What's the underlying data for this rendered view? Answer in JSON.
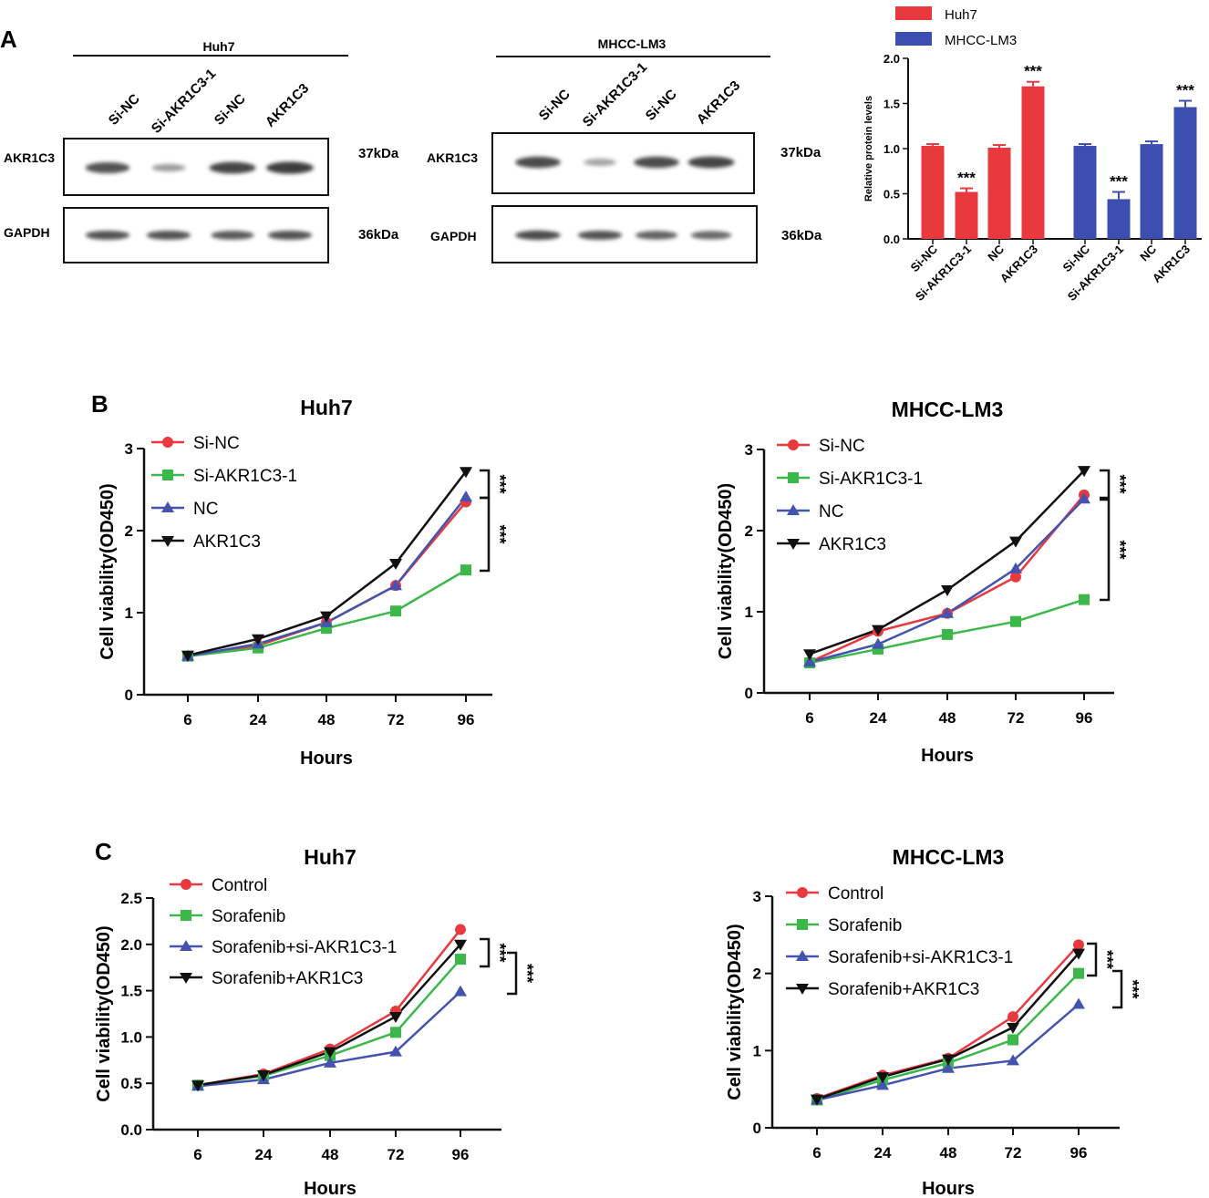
{
  "panel_labels": {
    "a": "A",
    "b": "B",
    "c": "C"
  },
  "colors": {
    "red": "#e8393f",
    "green": "#3cb84a",
    "blue": "#4452b0",
    "black": "#111111",
    "bar_red": "#e8393f",
    "bar_blue": "#3c4fb0"
  },
  "blots": [
    {
      "cell_line": "Huh7",
      "lanes": [
        "Si-NC",
        "Si-AKR1C3-1",
        "Si-NC",
        "AKR1C3"
      ],
      "proteins": [
        {
          "name": "AKR1C3",
          "kda": "37kDa",
          "intensity": [
            0.85,
            0.35,
            0.95,
            1.0
          ]
        },
        {
          "name": "GAPDH",
          "kda": "36kDa",
          "intensity": [
            0.85,
            0.85,
            0.8,
            0.85
          ]
        }
      ]
    },
    {
      "cell_line": "MHCC-LM3",
      "lanes": [
        "Si-NC",
        "Si-AKR1C3-1",
        "Si-NC",
        "AKR1C3"
      ],
      "proteins": [
        {
          "name": "AKR1C3",
          "kda": "37kDa",
          "intensity": [
            0.9,
            0.3,
            0.9,
            0.95
          ]
        },
        {
          "name": "GAPDH",
          "kda": "36kDa",
          "intensity": [
            0.9,
            0.85,
            0.75,
            0.7
          ]
        }
      ]
    }
  ],
  "chart_data": [
    {
      "id": "bar",
      "type": "bar",
      "ylabel": "Relative protein levels",
      "ylim": [
        0,
        2.0
      ],
      "yticks": [
        "0.0",
        "0.5",
        "1.0",
        "1.5",
        "2.0"
      ],
      "legend": [
        "Huh7",
        "MHCC-LM3"
      ],
      "series": [
        {
          "name": "Huh7",
          "categories": [
            "Si-NC",
            "Si-AKR1C3-1",
            "NC",
            "AKR1C3"
          ],
          "values": [
            1.03,
            0.52,
            1.01,
            1.69
          ],
          "errors": [
            0.02,
            0.04,
            0.03,
            0.05
          ],
          "sig": [
            "",
            "***",
            "",
            "***"
          ]
        },
        {
          "name": "MHCC-LM3",
          "categories": [
            "Si-NC",
            "Si-AKR1C3-1",
            "NC",
            "AKR1C3"
          ],
          "values": [
            1.03,
            0.44,
            1.05,
            1.46
          ],
          "errors": [
            0.02,
            0.08,
            0.03,
            0.07
          ],
          "sig": [
            "",
            "***",
            "",
            "***"
          ]
        }
      ]
    },
    {
      "id": "b1",
      "type": "line",
      "title": "Huh7",
      "xlabel": "Hours",
      "ylabel": "Cell viability(OD450)",
      "categories": [
        "6",
        "24",
        "48",
        "72",
        "96"
      ],
      "ylim": [
        0,
        3
      ],
      "yticks": [
        "0",
        "1",
        "2",
        "3"
      ],
      "series": [
        {
          "name": "Si-NC",
          "values": [
            0.47,
            0.6,
            0.88,
            1.33,
            2.35
          ]
        },
        {
          "name": "Si-AKR1C3-1",
          "values": [
            0.47,
            0.57,
            0.81,
            1.02,
            1.52
          ]
        },
        {
          "name": "NC",
          "values": [
            0.47,
            0.62,
            0.88,
            1.33,
            2.41
          ]
        },
        {
          "name": "AKR1C3",
          "values": [
            0.48,
            0.68,
            0.96,
            1.6,
            2.72
          ]
        }
      ],
      "significance": [
        "***",
        "***"
      ]
    },
    {
      "id": "b2",
      "type": "line",
      "title": "MHCC-LM3",
      "xlabel": "Hours",
      "ylabel": "Cell viability(OD450)",
      "categories": [
        "6",
        "24",
        "48",
        "72",
        "96"
      ],
      "ylim": [
        0,
        3
      ],
      "yticks": [
        "0",
        "1",
        "2",
        "3"
      ],
      "series": [
        {
          "name": "Si-NC",
          "values": [
            0.38,
            0.76,
            0.98,
            1.43,
            2.44
          ]
        },
        {
          "name": "Si-AKR1C3-1",
          "values": [
            0.37,
            0.54,
            0.72,
            0.88,
            1.15
          ]
        },
        {
          "name": "NC",
          "values": [
            0.38,
            0.6,
            0.98,
            1.53,
            2.39
          ]
        },
        {
          "name": "AKR1C3",
          "values": [
            0.48,
            0.78,
            1.27,
            1.87,
            2.74
          ]
        }
      ],
      "significance": [
        "***",
        "***"
      ]
    },
    {
      "id": "c1",
      "type": "line",
      "title": "Huh7",
      "xlabel": "Hours",
      "ylabel": "Cell viability(OD450)",
      "categories": [
        "6",
        "24",
        "48",
        "72",
        "96"
      ],
      "ylim": [
        0,
        2.5
      ],
      "yticks": [
        "0.0",
        "0.5",
        "1.0",
        "1.5",
        "2.0",
        "2.5"
      ],
      "series": [
        {
          "name": "Control",
          "values": [
            0.48,
            0.6,
            0.87,
            1.28,
            2.16
          ]
        },
        {
          "name": "Sorafenib",
          "values": [
            0.48,
            0.58,
            0.8,
            1.05,
            1.84
          ]
        },
        {
          "name": "Sorafenib+si-AKR1C3-1",
          "values": [
            0.47,
            0.54,
            0.72,
            0.84,
            1.49
          ]
        },
        {
          "name": "Sorafenib+AKR1C3",
          "values": [
            0.48,
            0.59,
            0.84,
            1.22,
            2.0
          ]
        }
      ],
      "significance": [
        "***",
        "***"
      ]
    },
    {
      "id": "c2",
      "type": "line",
      "title": "MHCC-LM3",
      "xlabel": "Hours",
      "ylabel": "Cell viability(OD450)",
      "categories": [
        "6",
        "24",
        "48",
        "72",
        "96"
      ],
      "ylim": [
        0,
        3
      ],
      "yticks": [
        "0",
        "1",
        "2",
        "3"
      ],
      "series": [
        {
          "name": "Control",
          "values": [
            0.38,
            0.68,
            0.9,
            1.44,
            2.37
          ]
        },
        {
          "name": "Sorafenib",
          "values": [
            0.36,
            0.62,
            0.84,
            1.14,
            2.0
          ]
        },
        {
          "name": "Sorafenib+si-AKR1C3-1",
          "values": [
            0.36,
            0.55,
            0.77,
            0.87,
            1.6
          ]
        },
        {
          "name": "Sorafenib+AKR1C3",
          "values": [
            0.37,
            0.66,
            0.89,
            1.3,
            2.26
          ]
        }
      ],
      "significance": [
        "***",
        "***"
      ]
    }
  ]
}
